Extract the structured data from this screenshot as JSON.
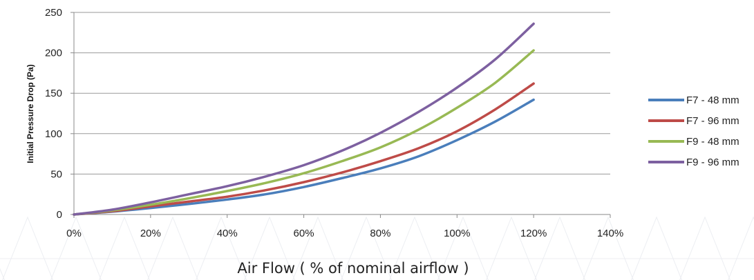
{
  "chart_data": {
    "type": "line",
    "title": "",
    "xlabel": "Air Flow ( % of nominal airflow )",
    "ylabel": "Initial Pressure Drop (Pa)",
    "xlim": [
      0,
      140
    ],
    "ylim": [
      0,
      250
    ],
    "x_ticks": [
      0,
      20,
      40,
      60,
      80,
      100,
      120,
      140
    ],
    "x_tick_labels": [
      "0%",
      "20%",
      "40%",
      "60%",
      "80%",
      "100%",
      "120%",
      "140%"
    ],
    "y_ticks": [
      0,
      50,
      100,
      150,
      200,
      250
    ],
    "y_tick_labels": [
      "0",
      "50",
      "100",
      "150",
      "200",
      "250"
    ],
    "grid": "horizontal",
    "legend_position": "right",
    "x": [
      0,
      10,
      20,
      30,
      40,
      50,
      60,
      70,
      80,
      90,
      100,
      110,
      120
    ],
    "series": [
      {
        "name": "F7 - 48 mm",
        "color": "#4A7EBB",
        "values": [
          0,
          3.5,
          8,
          13,
          18.5,
          25,
          34,
          45,
          57,
          72,
          92,
          115,
          142
        ]
      },
      {
        "name": "F7 - 96 mm",
        "color": "#BE4B48",
        "values": [
          0,
          4,
          10,
          16,
          22,
          30,
          40,
          52,
          66,
          82,
          103,
          130,
          162
        ]
      },
      {
        "name": "F9 - 48 mm",
        "color": "#98B954",
        "values": [
          0,
          5,
          12,
          20,
          29,
          39,
          51,
          66,
          83,
          105,
          132,
          163,
          203
        ]
      },
      {
        "name": "F9 - 96 mm",
        "color": "#7D60A0",
        "values": [
          0,
          6,
          15,
          25,
          35,
          47,
          61,
          79,
          101,
          127,
          157,
          192,
          236
        ]
      }
    ]
  }
}
